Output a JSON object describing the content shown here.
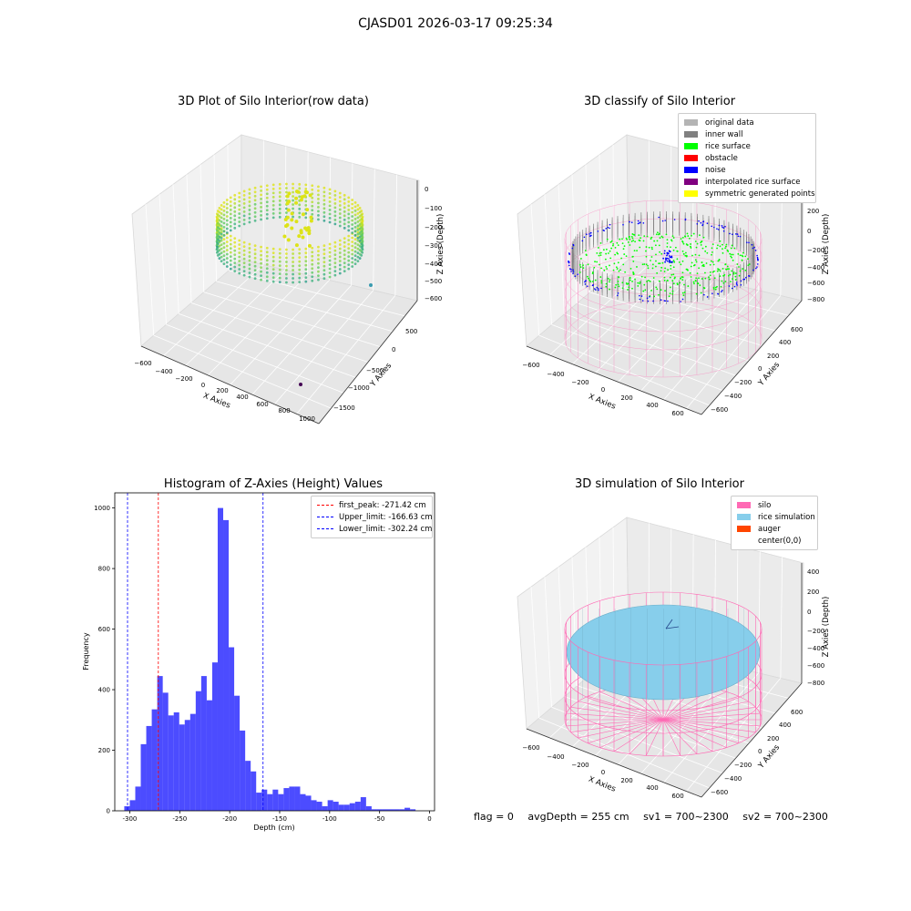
{
  "figure": {
    "title": "CJASD01 2026-03-17 09:25:34"
  },
  "chart_data": [
    {
      "type": "scatter",
      "title": "3D Plot of Silo Interior(row data)",
      "xlabel": "X Axies",
      "ylabel": "Y Axies",
      "zlabel": "Z Axies (Depth)",
      "x_ticks": [
        "−600",
        "−400",
        "−200",
        "0",
        "200",
        "400",
        "600",
        "800",
        "1000"
      ],
      "y_ticks": [
        "500",
        "0",
        "−500",
        "−1000",
        "−1500"
      ],
      "z_ticks": [
        "0",
        "−100",
        "−200",
        "−300",
        "−400",
        "−500",
        "−600"
      ],
      "xlim": [
        -650,
        1000
      ],
      "ylim": [
        -1600,
        650
      ],
      "zlim": [
        -650,
        30
      ]
    },
    {
      "type": "scatter",
      "title": "3D classify of Silo Interior",
      "xlabel": "X Axies",
      "ylabel": "Y Axies",
      "zlabel": "Z Axies (Depth)",
      "x_ticks": [
        "−600",
        "−400",
        "−200",
        "0",
        "200",
        "400",
        "600"
      ],
      "y_ticks": [
        "600",
        "400",
        "200",
        "0",
        "−200",
        "−400",
        "−600"
      ],
      "z_ticks": [
        "200",
        "0",
        "−200",
        "−400",
        "−600",
        "−800"
      ],
      "legend": [
        "original data",
        "inner wall",
        "rice surface",
        "obstacle",
        "noise",
        "interpolated rice surface",
        "symmetric generated points"
      ],
      "legend_colors": [
        "#b4b4b4",
        "#808080",
        "#00ff00",
        "#ff0000",
        "#0000ff",
        "#800080",
        "#ffff00"
      ],
      "legend_position": "top-right"
    },
    {
      "type": "bar",
      "title": "Histogram of Z-Axies (Height) Values",
      "xlabel": "Depth (cm)",
      "ylabel": "Frequency",
      "xlim": [
        -315,
        5
      ],
      "ylim": [
        0,
        1050
      ],
      "x_ticks": [
        -300,
        -250,
        -200,
        -150,
        -100,
        -50,
        0
      ],
      "y_ticks": [
        0,
        200,
        400,
        600,
        800,
        1000
      ],
      "bar_color": "#0000ff",
      "bin_start": -305.5,
      "bin_width": 5.5,
      "values": [
        15,
        35,
        80,
        220,
        280,
        335,
        445,
        390,
        315,
        325,
        285,
        300,
        320,
        395,
        445,
        365,
        490,
        1000,
        960,
        540,
        380,
        265,
        165,
        130,
        60,
        70,
        55,
        70,
        55,
        75,
        80,
        80,
        55,
        50,
        35,
        30,
        15,
        35,
        30,
        20,
        20,
        25,
        30,
        45,
        15,
        5,
        5,
        5,
        5,
        5,
        5,
        10,
        5
      ],
      "vlines": [
        {
          "x": -302.24,
          "color": "#0000ff",
          "label": "Lower_limit: -302.24 cm"
        },
        {
          "x": -271.42,
          "color": "#ff0000",
          "label": "first_peak: -271.42 cm"
        },
        {
          "x": -166.63,
          "color": "#0000ff",
          "label": "Upper_limit: -166.63 cm"
        }
      ],
      "legend": [
        "first_peak: -271.42 cm",
        "Upper_limit: -166.63 cm",
        "Lower_limit: -302.24 cm"
      ],
      "legend_colors": [
        "#ff0000",
        "#0000ff",
        "#0000ff"
      ],
      "legend_position": "top-right"
    },
    {
      "type": "scatter",
      "title": "3D simulation of Silo Interior",
      "xlabel": "X Axies",
      "ylabel": "Y Axies",
      "zlabel": "Z Axies (Depth)",
      "x_ticks": [
        "−600",
        "−400",
        "−200",
        "0",
        "200",
        "400",
        "600"
      ],
      "y_ticks": [
        "600",
        "400",
        "200",
        "0",
        "−200",
        "−400",
        "−600"
      ],
      "z_ticks": [
        "400",
        "200",
        "0",
        "−200",
        "−400",
        "−600",
        "−800"
      ],
      "legend": [
        "silo",
        "rice simulation",
        "auger",
        "center(0,0)"
      ],
      "legend_colors": [
        "#ff69b4",
        "#87ceeb",
        "#ff4500",
        ""
      ],
      "legend_position": "top-right"
    }
  ],
  "footer": {
    "flag": "flag = 0",
    "avg_depth": "avgDepth = 255 cm",
    "sv1": "sv1 = 700~2300",
    "sv2": "sv2 = 700~2300"
  }
}
